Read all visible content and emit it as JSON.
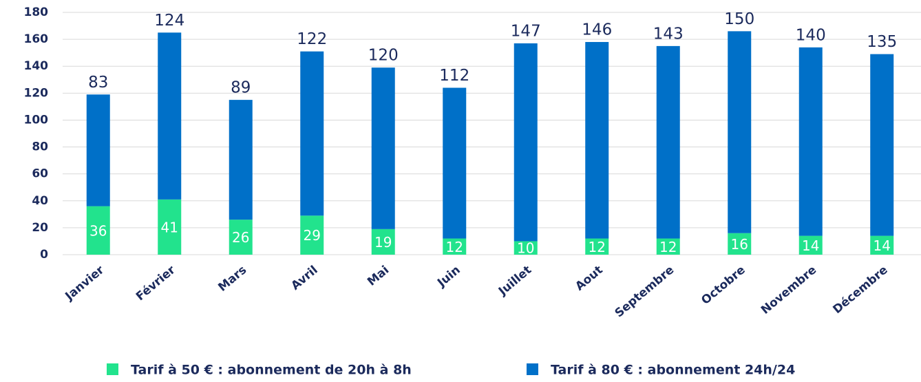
{
  "chart_data": {
    "type": "stacked_bar",
    "categories": [
      "Janvier",
      "Février",
      "Mars",
      "Avril",
      "Mai",
      "Juin",
      "Juillet",
      "Aout",
      "Septembre",
      "Octobre",
      "Novembre",
      "Décembre"
    ],
    "series": [
      {
        "name": "Tarif à 50 € : abonnement de 20h à 8h",
        "color": "#22e38d",
        "values": [
          36,
          41,
          26,
          29,
          19,
          12,
          10,
          12,
          12,
          16,
          14,
          14
        ]
      },
      {
        "name": "Tarif à 80 € : abonnement 24h/24",
        "color": "#0070c8",
        "values": [
          83,
          124,
          89,
          122,
          120,
          112,
          147,
          146,
          143,
          150,
          140,
          135
        ]
      }
    ],
    "ylim": [
      0,
      180
    ],
    "yticks": [
      0,
      20,
      40,
      60,
      80,
      100,
      120,
      140,
      160,
      180
    ],
    "grid": true,
    "legend": "bottom"
  }
}
